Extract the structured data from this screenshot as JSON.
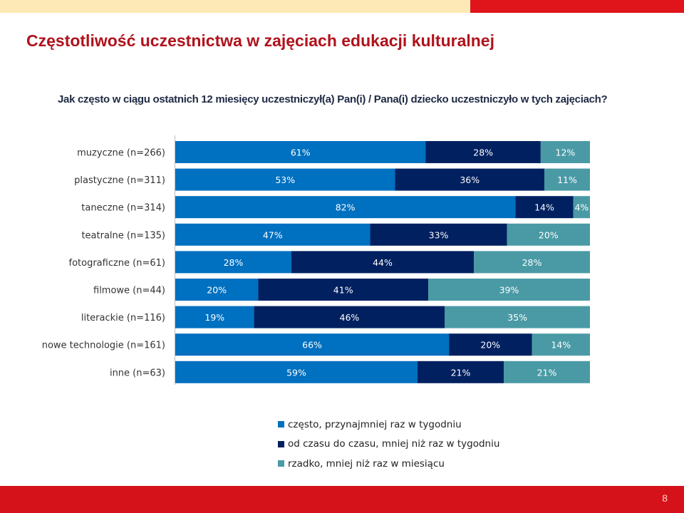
{
  "title": "Częstotliwość uczestnictwa w zajęciach edukacji kulturalnej",
  "question": "Jak często w ciągu ostatnich 12 miesięcy uczestniczył(a) Pan(i) / Pana(i) dziecko uczestniczyło w tych zajęciach?",
  "page_number": "8",
  "colors": {
    "accent": "#b0121c",
    "footer": "#d5111a",
    "topbar_left": "#fde9b5",
    "topbar_right": "#e0141b"
  },
  "chart_data": {
    "type": "bar",
    "orientation": "horizontal",
    "stacked": "percent",
    "categories": [
      "muzyczne (n=266)",
      "plastyczne (n=311)",
      "taneczne (n=314)",
      "teatralne (n=135)",
      "fotograficzne (n=61)",
      "filmowe (n=44)",
      "literackie (n=116)",
      "nowe technologie (n=161)",
      "inne (n=63)"
    ],
    "series": [
      {
        "name": "często, przynajmniej raz w tygodniu",
        "color": "#0070c0",
        "values": [
          61,
          53,
          82,
          47,
          28,
          20,
          19,
          66,
          59
        ]
      },
      {
        "name": "od czasu do czasu, mniej niż raz w tygodniu",
        "color": "#002060",
        "values": [
          28,
          36,
          14,
          33,
          44,
          41,
          46,
          20,
          21
        ]
      },
      {
        "name": "rzadko, mniej niż raz w miesiącu",
        "color": "#4a9aa5",
        "values": [
          12,
          11,
          4,
          20,
          28,
          39,
          35,
          14,
          21
        ]
      }
    ],
    "value_suffix": "%",
    "legend_position": "bottom"
  }
}
